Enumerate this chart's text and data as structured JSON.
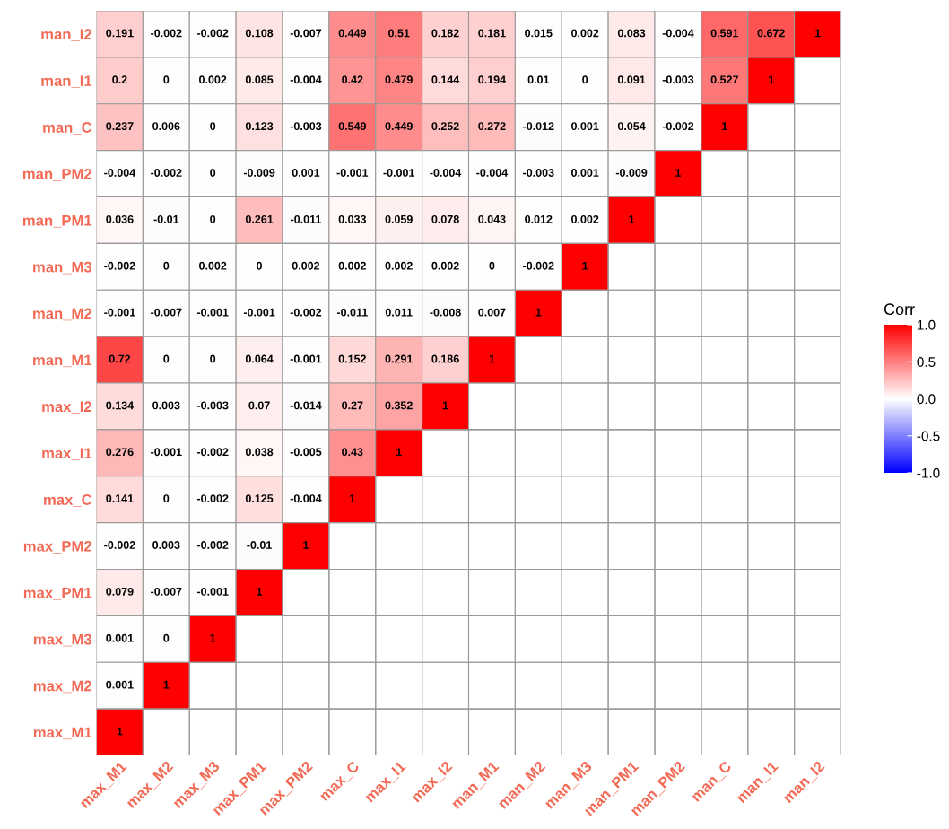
{
  "chart_data": {
    "type": "heatmap",
    "clabel": "Corr",
    "categories": [
      "max_M1",
      "max_M2",
      "max_M3",
      "max_PM1",
      "max_PM2",
      "max_C",
      "max_I1",
      "max_I2",
      "man_M1",
      "man_M2",
      "man_M3",
      "man_PM1",
      "man_PM2",
      "man_C",
      "man_I1",
      "man_I2"
    ],
    "y_categories": [
      "man_I2",
      "man_I1",
      "man_C",
      "man_PM2",
      "man_PM1",
      "man_M3",
      "man_M2",
      "man_M1",
      "max_I2",
      "max_I1",
      "max_C",
      "max_PM2",
      "max_PM1",
      "max_M3",
      "max_M2",
      "max_M1"
    ],
    "cells": [
      [
        0.191,
        -0.002,
        -0.002,
        0.108,
        -0.007,
        0.449,
        0.51,
        0.182,
        0.181,
        0.015,
        0.002,
        0.083,
        -0.004,
        0.591,
        0.672,
        1
      ],
      [
        0.2,
        0,
        0.002,
        0.085,
        -0.004,
        0.42,
        0.479,
        0.144,
        0.194,
        0.01,
        0,
        0.091,
        -0.003,
        0.527,
        1,
        null
      ],
      [
        0.237,
        0.006,
        0,
        0.123,
        -0.003,
        0.549,
        0.449,
        0.252,
        0.272,
        -0.012,
        0.001,
        0.054,
        -0.002,
        1,
        null,
        null
      ],
      [
        -0.004,
        -0.002,
        0,
        -0.009,
        0.001,
        -0.001,
        -0.001,
        -0.004,
        -0.004,
        -0.003,
        0.001,
        -0.009,
        1,
        null,
        null,
        null
      ],
      [
        0.036,
        -0.01,
        0,
        0.261,
        -0.011,
        0.033,
        0.059,
        0.078,
        0.043,
        0.012,
        0.002,
        1,
        null,
        null,
        null,
        null
      ],
      [
        -0.002,
        0,
        0.002,
        0,
        0.002,
        0.002,
        0.002,
        0.002,
        0,
        -0.002,
        1,
        null,
        null,
        null,
        null,
        null
      ],
      [
        -0.001,
        -0.007,
        -0.001,
        -0.001,
        -0.002,
        -0.011,
        0.011,
        -0.008,
        0.007,
        1,
        null,
        null,
        null,
        null,
        null,
        null
      ],
      [
        0.72,
        0,
        0,
        0.064,
        -0.001,
        0.152,
        0.291,
        0.186,
        1,
        null,
        null,
        null,
        null,
        null,
        null,
        null
      ],
      [
        0.134,
        0.003,
        -0.003,
        0.07,
        -0.014,
        0.27,
        0.352,
        1,
        null,
        null,
        null,
        null,
        null,
        null,
        null,
        null
      ],
      [
        0.276,
        -0.001,
        -0.002,
        0.038,
        -0.005,
        0.43,
        1,
        null,
        null,
        null,
        null,
        null,
        null,
        null,
        null,
        null
      ],
      [
        0.141,
        0,
        -0.002,
        0.125,
        -0.004,
        1,
        null,
        null,
        null,
        null,
        null,
        null,
        null,
        null,
        null,
        null
      ],
      [
        -0.002,
        0.003,
        -0.002,
        -0.01,
        1,
        null,
        null,
        null,
        null,
        null,
        null,
        null,
        null,
        null,
        null,
        null
      ],
      [
        0.079,
        -0.007,
        -0.001,
        1,
        null,
        null,
        null,
        null,
        null,
        null,
        null,
        null,
        null,
        null,
        null,
        null
      ],
      [
        0.001,
        0,
        1,
        null,
        null,
        null,
        null,
        null,
        null,
        null,
        null,
        null,
        null,
        null,
        null,
        null
      ],
      [
        0.001,
        1,
        null,
        null,
        null,
        null,
        null,
        null,
        null,
        null,
        null,
        null,
        null,
        null,
        null,
        null
      ],
      [
        1,
        null,
        null,
        null,
        null,
        null,
        null,
        null,
        null,
        null,
        null,
        null,
        null,
        null,
        null,
        null
      ]
    ],
    "data_labels": true,
    "clim": [
      -1,
      1
    ],
    "cticks": [
      {
        "value": -1,
        "label": "-1.0"
      },
      {
        "value": -0.5,
        "label": "-0.5"
      },
      {
        "value": 0,
        "label": "0.0"
      },
      {
        "value": 0.5,
        "label": "0.5"
      },
      {
        "value": 1,
        "label": "1.0"
      }
    ]
  }
}
